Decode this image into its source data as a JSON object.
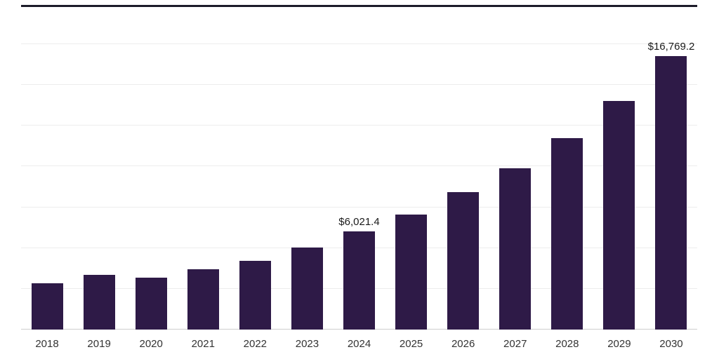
{
  "chart_data": {
    "type": "bar",
    "categories": [
      "2018",
      "2019",
      "2020",
      "2021",
      "2022",
      "2023",
      "2024",
      "2025",
      "2026",
      "2027",
      "2028",
      "2029",
      "2030"
    ],
    "values": [
      2830,
      3340,
      3170,
      3680,
      4230,
      5030,
      6021.4,
      7060,
      8420,
      9900,
      11760,
      14000,
      16769.2
    ],
    "data_labels": [
      "",
      "",
      "",
      "",
      "",
      "",
      "$6,021.4",
      "",
      "",
      "",
      "",
      "",
      "$16,769.2"
    ],
    "title": "",
    "xlabel": "",
    "ylabel": "",
    "ylim": [
      0,
      17500
    ],
    "grid_interval": 2500,
    "grid": true,
    "legend": false,
    "colors": {
      "bar": "#2E1A47",
      "background": "#FFFFFF",
      "gridline": "#EDEDED",
      "axis_line": "#CFCFCF",
      "top_divider": "#1C1B29",
      "data_label_text": "#1A1A1A",
      "tick_label_text": "#333333"
    }
  }
}
